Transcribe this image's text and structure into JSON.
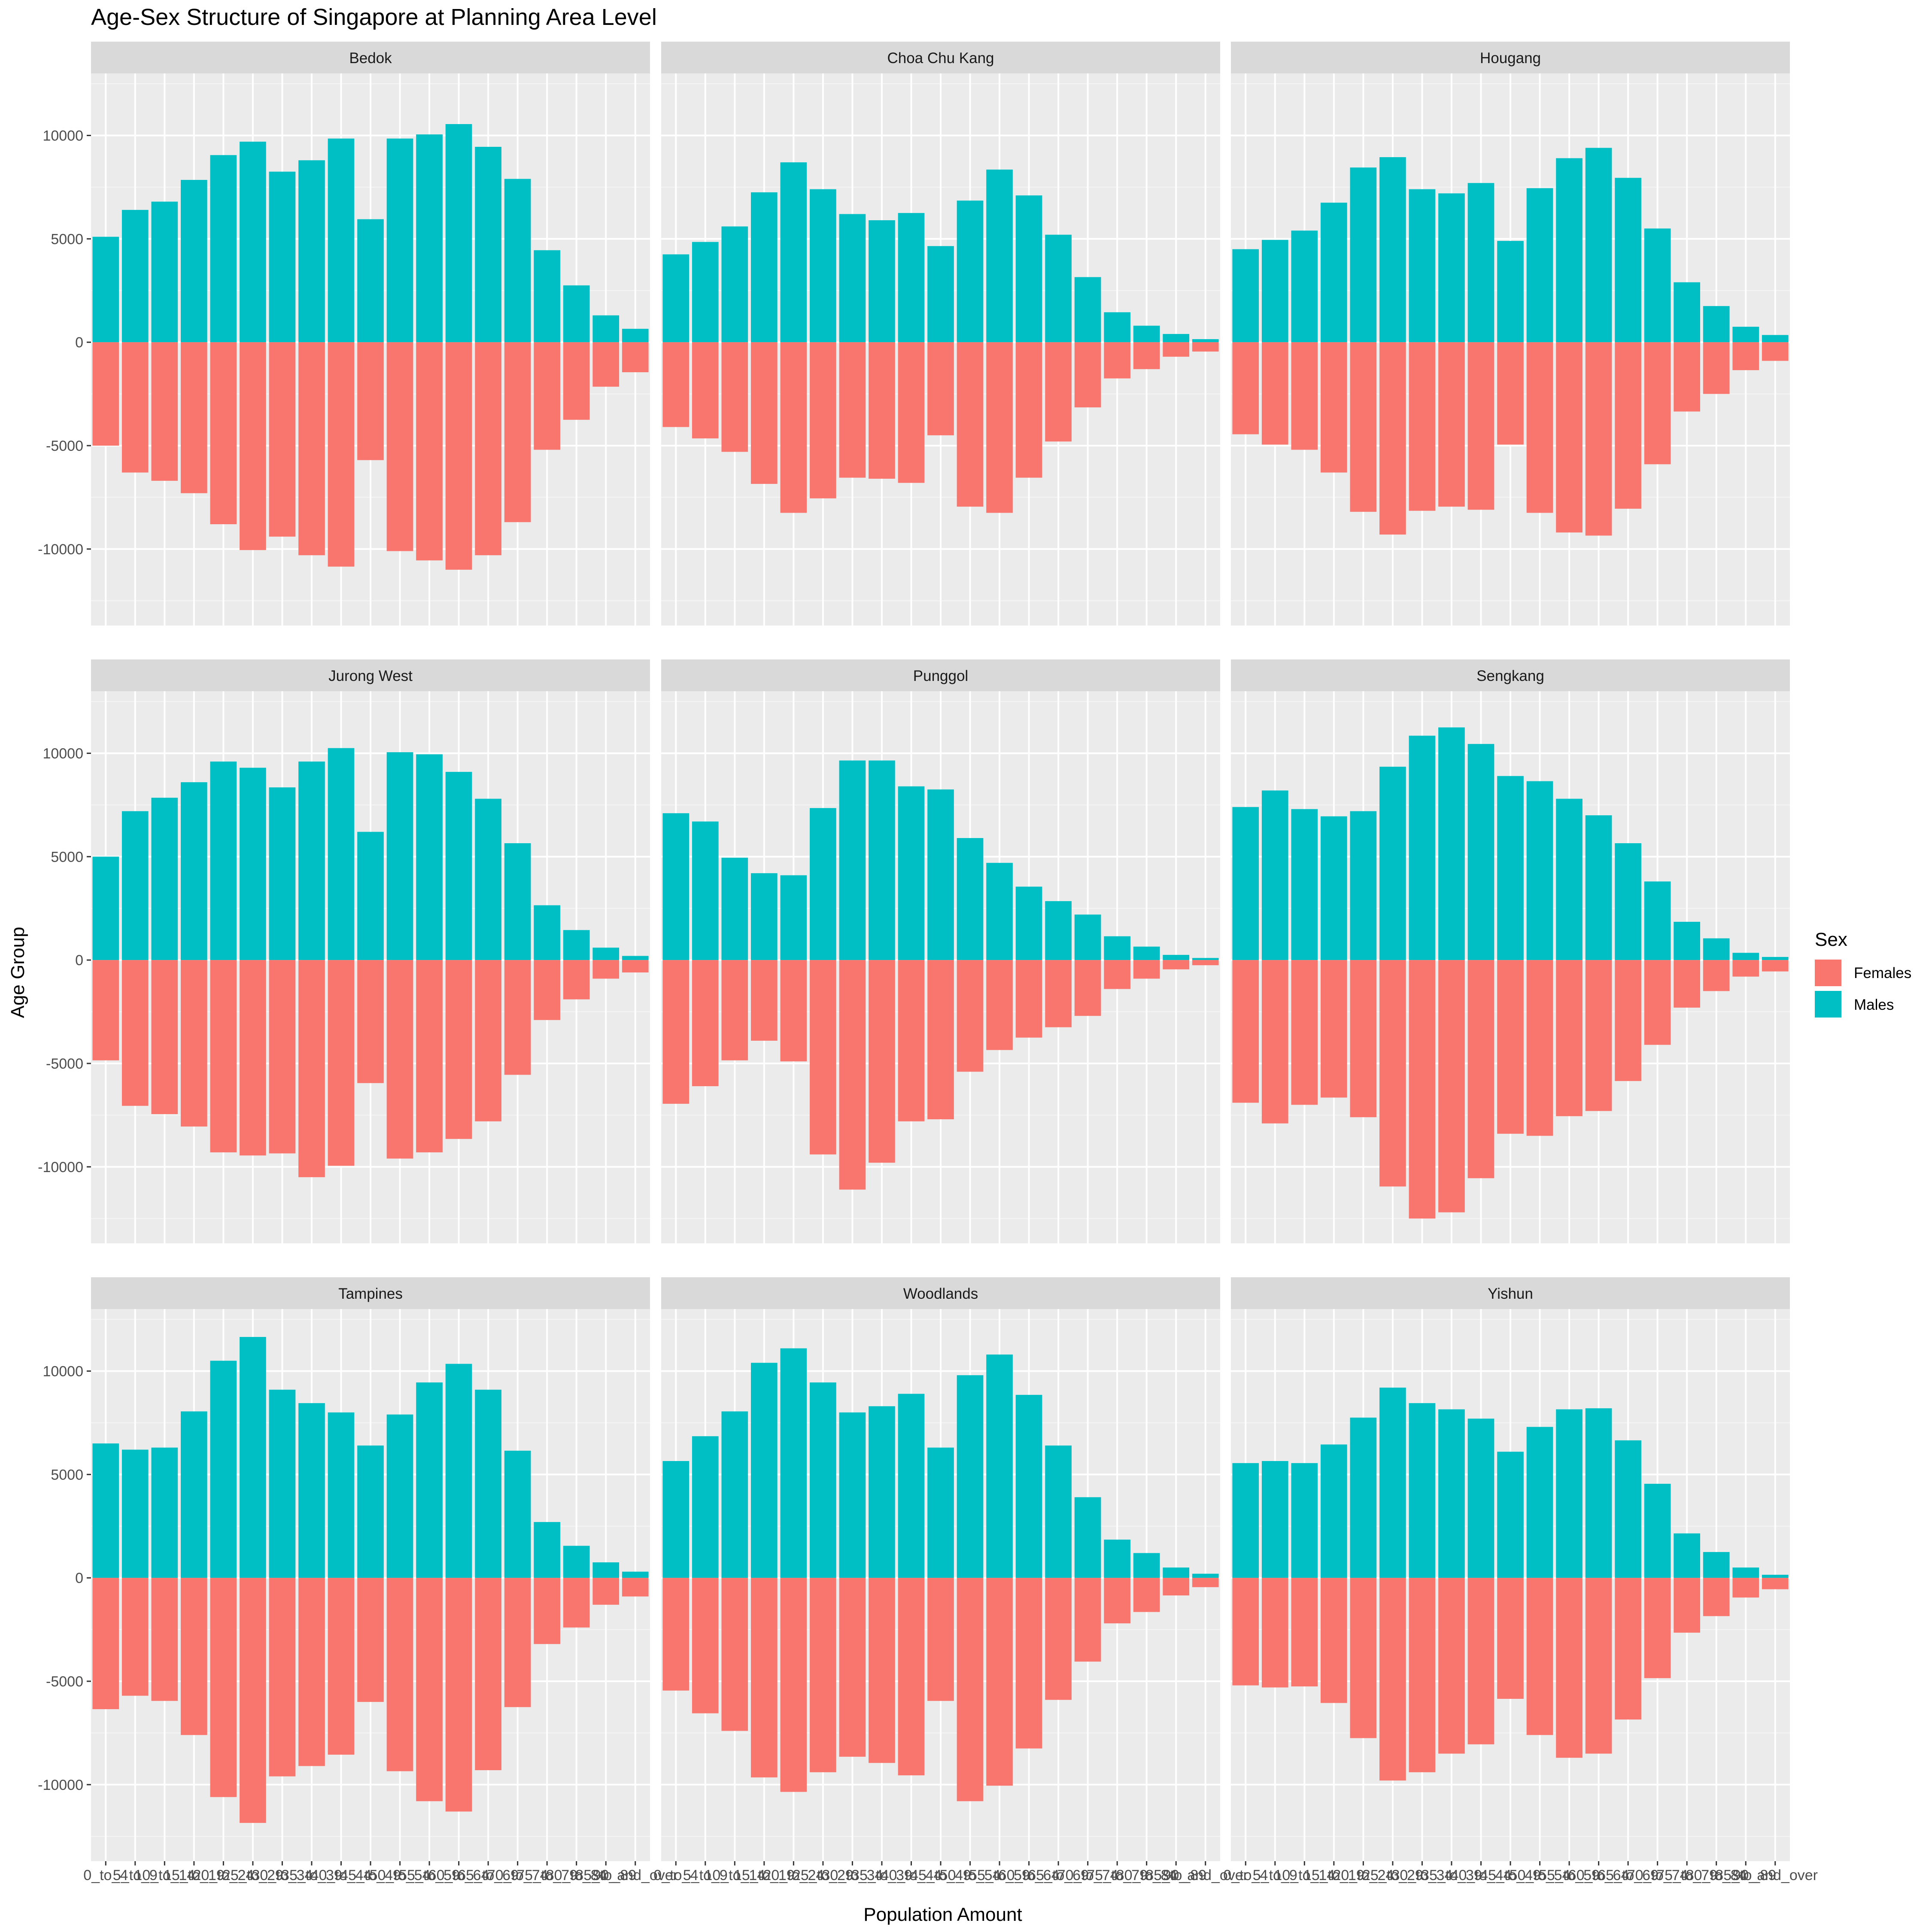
{
  "chart_data": {
    "type": "bar",
    "title": "Age-Sex Structure of Singapore at Planning Area Level",
    "xlabel": "Population Amount",
    "ylabel": "Age Group",
    "legend": {
      "title": "Sex",
      "position": "right",
      "entries": [
        {
          "name": "Females",
          "color": "#F8766D"
        },
        {
          "name": "Males",
          "color": "#00BFC4"
        }
      ]
    },
    "ylim": [
      -13700,
      13000
    ],
    "yticks": [
      -10000,
      -5000,
      0,
      5000,
      10000
    ],
    "ytick_labels": [
      "-10000",
      "-5000",
      "0",
      "5000",
      "10000"
    ],
    "categories": [
      "0_to_4",
      "5_to_9",
      "10_to_14",
      "15_to_19",
      "20_to_24",
      "25_to_29",
      "30_to_34",
      "35_to_39",
      "40_to_44",
      "45_to_49",
      "50_to_54",
      "55_to_59",
      "60_to_64",
      "65_to_69",
      "70_to_74",
      "75_to_79",
      "80_to_84",
      "85_to_89",
      "90_and_over"
    ],
    "grid": true,
    "panels": [
      {
        "name": "Bedok",
        "series": [
          {
            "name": "Males",
            "values": [
              5100,
              6400,
              6800,
              7850,
              9050,
              9700,
              8250,
              8800,
              9850,
              5950,
              9850,
              10050,
              10550,
              9450,
              7900,
              4450,
              2750,
              1300,
              650
            ]
          },
          {
            "name": "Females",
            "values": [
              -5000,
              -6300,
              -6700,
              -7300,
              -8800,
              -10050,
              -9400,
              -10300,
              -10850,
              -5700,
              -10100,
              -10550,
              -11000,
              -10300,
              -8700,
              -5200,
              -3750,
              -2150,
              -1450
            ]
          }
        ]
      },
      {
        "name": "Choa Chu Kang",
        "series": [
          {
            "name": "Males",
            "values": [
              4250,
              4850,
              5600,
              7250,
              8700,
              7400,
              6200,
              5900,
              6250,
              4650,
              6850,
              8350,
              7100,
              5200,
              3150,
              1450,
              800,
              400,
              150
            ]
          },
          {
            "name": "Females",
            "values": [
              -4100,
              -4650,
              -5300,
              -6850,
              -8250,
              -7550,
              -6550,
              -6600,
              -6800,
              -4500,
              -7950,
              -8250,
              -6550,
              -4800,
              -3150,
              -1750,
              -1300,
              -700,
              -450
            ]
          }
        ]
      },
      {
        "name": "Hougang",
        "series": [
          {
            "name": "Males",
            "values": [
              4500,
              4950,
              5400,
              6750,
              8450,
              8950,
              7400,
              7200,
              7700,
              4900,
              7450,
              8900,
              9400,
              7950,
              5500,
              2900,
              1750,
              750,
              350
            ]
          },
          {
            "name": "Females",
            "values": [
              -4450,
              -4950,
              -5200,
              -6300,
              -8200,
              -9300,
              -8150,
              -7950,
              -8100,
              -4950,
              -8250,
              -9200,
              -9350,
              -8050,
              -5900,
              -3350,
              -2500,
              -1350,
              -900
            ]
          }
        ]
      },
      {
        "name": "Jurong West",
        "series": [
          {
            "name": "Males",
            "values": [
              5000,
              7200,
              7850,
              8600,
              9600,
              9300,
              8350,
              9600,
              10250,
              6200,
              10050,
              9950,
              9100,
              7800,
              5650,
              2650,
              1450,
              600,
              200
            ]
          },
          {
            "name": "Females",
            "values": [
              -4850,
              -7050,
              -7450,
              -8050,
              -9300,
              -9450,
              -9350,
              -10500,
              -9950,
              -5950,
              -9600,
              -9300,
              -8650,
              -7800,
              -5550,
              -2900,
              -1900,
              -900,
              -600
            ]
          }
        ]
      },
      {
        "name": "Punggol",
        "series": [
          {
            "name": "Males",
            "values": [
              7100,
              6700,
              4950,
              4200,
              4100,
              7350,
              9650,
              9650,
              8400,
              8250,
              5900,
              4700,
              3550,
              2850,
              2200,
              1150,
              650,
              250,
              100
            ]
          },
          {
            "name": "Females",
            "values": [
              -6950,
              -6100,
              -4850,
              -3900,
              -4900,
              -9400,
              -11100,
              -9800,
              -7800,
              -7700,
              -5400,
              -4350,
              -3750,
              -3250,
              -2700,
              -1400,
              -900,
              -450,
              -250
            ]
          }
        ]
      },
      {
        "name": "Sengkang",
        "series": [
          {
            "name": "Males",
            "values": [
              7400,
              8200,
              7300,
              6950,
              7200,
              9350,
              10850,
              11250,
              10450,
              8900,
              8650,
              7800,
              7000,
              5650,
              3800,
              1850,
              1050,
              350,
              150
            ]
          },
          {
            "name": "Females",
            "values": [
              -6900,
              -7900,
              -7000,
              -6650,
              -7600,
              -10950,
              -12500,
              -12200,
              -10550,
              -8400,
              -8500,
              -7550,
              -7300,
              -5850,
              -4100,
              -2300,
              -1500,
              -800,
              -550
            ]
          }
        ]
      },
      {
        "name": "Tampines",
        "series": [
          {
            "name": "Males",
            "values": [
              6500,
              6200,
              6300,
              8050,
              10500,
              11650,
              9100,
              8450,
              8000,
              6400,
              7900,
              9450,
              10350,
              9100,
              6150,
              2700,
              1550,
              750,
              300
            ]
          },
          {
            "name": "Females",
            "values": [
              -6350,
              -5700,
              -5950,
              -7600,
              -10600,
              -11850,
              -9600,
              -9100,
              -8550,
              -6000,
              -9350,
              -10800,
              -11300,
              -9300,
              -6250,
              -3200,
              -2400,
              -1300,
              -900
            ]
          }
        ]
      },
      {
        "name": "Woodlands",
        "series": [
          {
            "name": "Males",
            "values": [
              5650,
              6850,
              8050,
              10400,
              11100,
              9450,
              8000,
              8300,
              8900,
              6300,
              9800,
              10800,
              8850,
              6400,
              3900,
              1850,
              1200,
              500,
              200
            ]
          },
          {
            "name": "Females",
            "values": [
              -5450,
              -6550,
              -7400,
              -9650,
              -10350,
              -9400,
              -8650,
              -8950,
              -9550,
              -5950,
              -10800,
              -10050,
              -8250,
              -5900,
              -4050,
              -2200,
              -1650,
              -850,
              -450
            ]
          }
        ]
      },
      {
        "name": "Yishun",
        "series": [
          {
            "name": "Males",
            "values": [
              5550,
              5650,
              5550,
              6450,
              7750,
              9200,
              8450,
              8150,
              7700,
              6100,
              7300,
              8150,
              8200,
              6650,
              4550,
              2150,
              1250,
              500,
              150
            ]
          },
          {
            "name": "Females",
            "values": [
              -5200,
              -5300,
              -5250,
              -6050,
              -7750,
              -9800,
              -9400,
              -8500,
              -8050,
              -5850,
              -7600,
              -8700,
              -8500,
              -6850,
              -4850,
              -2650,
              -1850,
              -950,
              -550
            ]
          }
        ]
      }
    ]
  }
}
